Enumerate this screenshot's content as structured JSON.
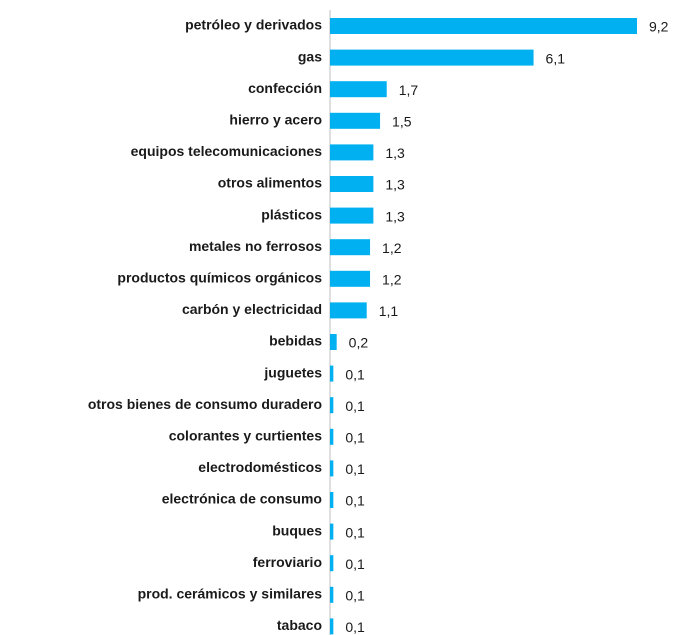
{
  "chart_data": {
    "type": "bar",
    "orientation": "horizontal",
    "categories": [
      "petróleo y derivados",
      "gas",
      "confección",
      "hierro y acero",
      "equipos telecomunicaciones",
      "otros alimentos",
      "plásticos",
      "metales no ferrosos",
      "productos químicos orgánicos",
      "carbón y electricidad",
      "bebidas",
      "juguetes",
      "otros bienes de consumo duradero",
      "colorantes y curtientes",
      "electrodomésticos",
      "electrónica de consumo",
      "buques",
      "ferroviario",
      "prod. cerámicos y similares",
      "tabaco"
    ],
    "values": [
      9.2,
      6.1,
      1.7,
      1.5,
      1.3,
      1.3,
      1.3,
      1.2,
      1.2,
      1.1,
      0.2,
      0.1,
      0.1,
      0.1,
      0.1,
      0.1,
      0.1,
      0.1,
      0.1,
      0.1
    ],
    "value_labels": [
      "9,2",
      "6,1",
      "1,7",
      "1,5",
      "1,3",
      "1,3",
      "1,3",
      "1,2",
      "1,2",
      "1,1",
      "0,2",
      "0,1",
      "0,1",
      "0,1",
      "0,1",
      "0,1",
      "0,1",
      "0,1",
      "0,1",
      "0,1"
    ],
    "color": "#00b0f0"
  }
}
